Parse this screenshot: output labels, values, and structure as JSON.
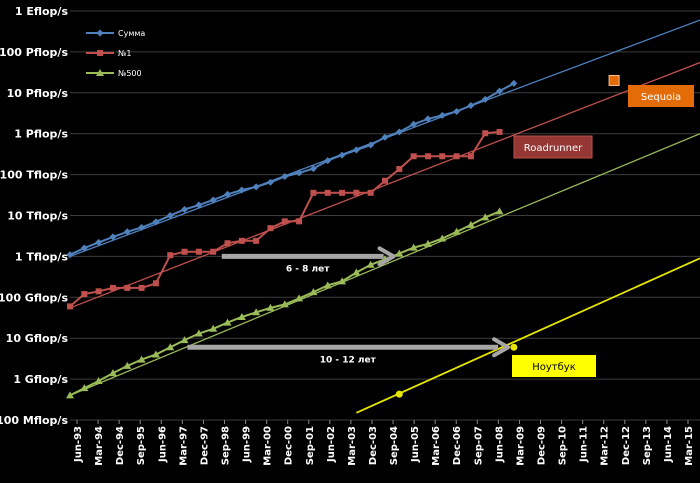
{
  "chart_data": {
    "type": "line",
    "y_scale": "log",
    "ylim": [
      "100 Mflop/s",
      "1 Eflop/s"
    ],
    "grid": "horizontal",
    "legend_position": "top-left",
    "y_ticks": [
      "1 Eflop/s",
      "100 Pflop/s",
      "10 Pflop/s",
      "1 Pflop/s",
      "100 Tflop/s",
      "10 Tflop/s",
      "1 Tflop/s",
      "100 Gflop/s",
      "10 Gflop/s",
      "1 Gflop/s",
      "100 Mflop/s"
    ],
    "x_ticks": [
      "Jun-93",
      "Mar-94",
      "Dec-94",
      "Sep-95",
      "Jun-96",
      "Mar-97",
      "Dec-97",
      "Sep-98",
      "Jun-99",
      "Mar-00",
      "Dec-00",
      "Sep-01",
      "Jun-02",
      "Mar-03",
      "Dec-03",
      "Sep-04",
      "Jun-05",
      "Mar-06",
      "Dec-06",
      "Sep-07",
      "Jun-08",
      "Mar-09",
      "Dec-09",
      "Sep-10",
      "Jun-11",
      "Mar-12",
      "Dec-12",
      "Sep-13",
      "Jun-14",
      "Mar-15"
    ],
    "series": [
      {
        "name": "Сумма",
        "color": "#4f81bd",
        "marker": "diamond",
        "points": [
          [
            "1993.5",
            1.1
          ],
          [
            "1994.0",
            1.6
          ],
          [
            "1994.5",
            2.2
          ],
          [
            "1995.0",
            3.0
          ],
          [
            "1995.5",
            4.0
          ],
          [
            "1996.0",
            5.1
          ],
          [
            "1996.5",
            7.0
          ],
          [
            "1997.0",
            10.0
          ],
          [
            "1997.5",
            14.0
          ],
          [
            "1998.0",
            18.0
          ],
          [
            "1998.5",
            24.0
          ],
          [
            "1999.0",
            33.0
          ],
          [
            "1999.5",
            42.0
          ],
          [
            "2000.0",
            50.0
          ],
          [
            "2000.5",
            65.0
          ],
          [
            "2001.0",
            90.0
          ],
          [
            "2001.5",
            110.0
          ],
          [
            "2002.0",
            140.0
          ],
          [
            "2002.5",
            220.0
          ],
          [
            "2003.0",
            300.0
          ],
          [
            "2003.5",
            400.0
          ],
          [
            "2004.0",
            530.0
          ],
          [
            "2004.5",
            820.0
          ],
          [
            "2005.0",
            1100.0
          ],
          [
            "2005.5",
            1700.0
          ],
          [
            "2006.0",
            2300.0
          ],
          [
            "2006.5",
            2800.0
          ],
          [
            "2007.0",
            3500.0
          ],
          [
            "2007.5",
            4900.0
          ],
          [
            "2008.0",
            6900.0
          ],
          [
            "2008.5",
            11000.0
          ],
          [
            "2009.0",
            17000.0
          ]
        ],
        "trend": [
          [
            "1993.5",
            1.0
          ],
          [
            "2015.5",
            600000.0
          ]
        ]
      },
      {
        "name": "№1",
        "color": "#c0504d",
        "marker": "square",
        "points": [
          [
            "1993.5",
            0.06
          ],
          [
            "1994.0",
            0.12
          ],
          [
            "1994.5",
            0.14
          ],
          [
            "1995.0",
            0.17
          ],
          [
            "1995.5",
            0.17
          ],
          [
            "1996.0",
            0.17
          ],
          [
            "1996.5",
            0.22
          ],
          [
            "1997.0",
            1.07
          ],
          [
            "1997.5",
            1.3
          ],
          [
            "1998.0",
            1.3
          ],
          [
            "1998.5",
            1.3
          ],
          [
            "1999.0",
            2.1
          ],
          [
            "1999.5",
            2.4
          ],
          [
            "2000.0",
            2.4
          ],
          [
            "2000.5",
            4.9
          ],
          [
            "2001.0",
            7.2
          ],
          [
            "2001.5",
            7.2
          ],
          [
            "2002.0",
            35.9
          ],
          [
            "2002.5",
            35.9
          ],
          [
            "2003.0",
            35.9
          ],
          [
            "2003.5",
            35.9
          ],
          [
            "2004.0",
            35.9
          ],
          [
            "2004.5",
            70.7
          ],
          [
            "2005.0",
            136.8
          ],
          [
            "2005.5",
            280.6
          ],
          [
            "2006.0",
            280.6
          ],
          [
            "2006.5",
            280.6
          ],
          [
            "2007.0",
            280.6
          ],
          [
            "2007.5",
            280.6
          ],
          [
            "2008.0",
            1026.0
          ],
          [
            "2008.5",
            1105.0
          ]
        ],
        "trend": [
          [
            "1993.5",
            0.055
          ],
          [
            "2015.5",
            55000.0
          ]
        ]
      },
      {
        "name": "№500",
        "color": "#9bbb59",
        "marker": "triangle",
        "points": [
          [
            "1993.5",
            0.0004
          ],
          [
            "1994.0",
            0.0006
          ],
          [
            "1994.5",
            0.0009
          ],
          [
            "1995.0",
            0.0014
          ],
          [
            "1995.5",
            0.0021
          ],
          [
            "1996.0",
            0.003
          ],
          [
            "1996.5",
            0.004
          ],
          [
            "1997.0",
            0.006
          ],
          [
            "1997.5",
            0.009
          ],
          [
            "1998.0",
            0.013
          ],
          [
            "1998.5",
            0.017
          ],
          [
            "1999.0",
            0.024
          ],
          [
            "1999.5",
            0.033
          ],
          [
            "2000.0",
            0.043
          ],
          [
            "2000.5",
            0.055
          ],
          [
            "2001.0",
            0.067
          ],
          [
            "2001.5",
            0.094
          ],
          [
            "2002.0",
            0.134
          ],
          [
            "2002.5",
            0.196
          ],
          [
            "2003.0",
            0.245
          ],
          [
            "2003.5",
            0.403
          ],
          [
            "2004.0",
            0.624
          ],
          [
            "2004.5",
            0.851
          ],
          [
            "2005.0",
            1.17
          ],
          [
            "2005.5",
            1.64
          ],
          [
            "2006.0",
            2.03
          ],
          [
            "2006.5",
            2.74
          ],
          [
            "2007.0",
            4.0
          ],
          [
            "2007.5",
            5.9
          ],
          [
            "2008.0",
            9.0
          ],
          [
            "2008.5",
            12.6
          ]
        ],
        "trend": [
          [
            "1993.5",
            0.0004
          ],
          [
            "2015.5",
            1000.0
          ]
        ]
      },
      {
        "name": "Ноутбук",
        "color": "#e6e600",
        "marker": "circle",
        "points": [
          [
            "2005.0",
            0.00043
          ],
          [
            "2009.0",
            0.006
          ]
        ],
        "trend": [
          [
            "2003.5",
            0.00015
          ],
          [
            "2015.5",
            0.9
          ]
        ]
      }
    ],
    "annotations": [
      {
        "id": "sequoia",
        "label": "Sequoia",
        "x": "2012.5",
        "y": 20000.0,
        "color": "#e36c09"
      },
      {
        "id": "roadrunner",
        "label": "Roadrunner",
        "x": "2008.5",
        "y": 1105.0,
        "color": "#c0504d"
      },
      {
        "id": "gap-1",
        "label": "6 - 8 лет",
        "from_x": "1998.8",
        "to_x": "2004.8",
        "y": 1.0
      },
      {
        "id": "gap-2",
        "label": "10 - 12 лет",
        "from_x": "1997.6",
        "to_x": "2008.8",
        "y": 0.006
      }
    ]
  }
}
